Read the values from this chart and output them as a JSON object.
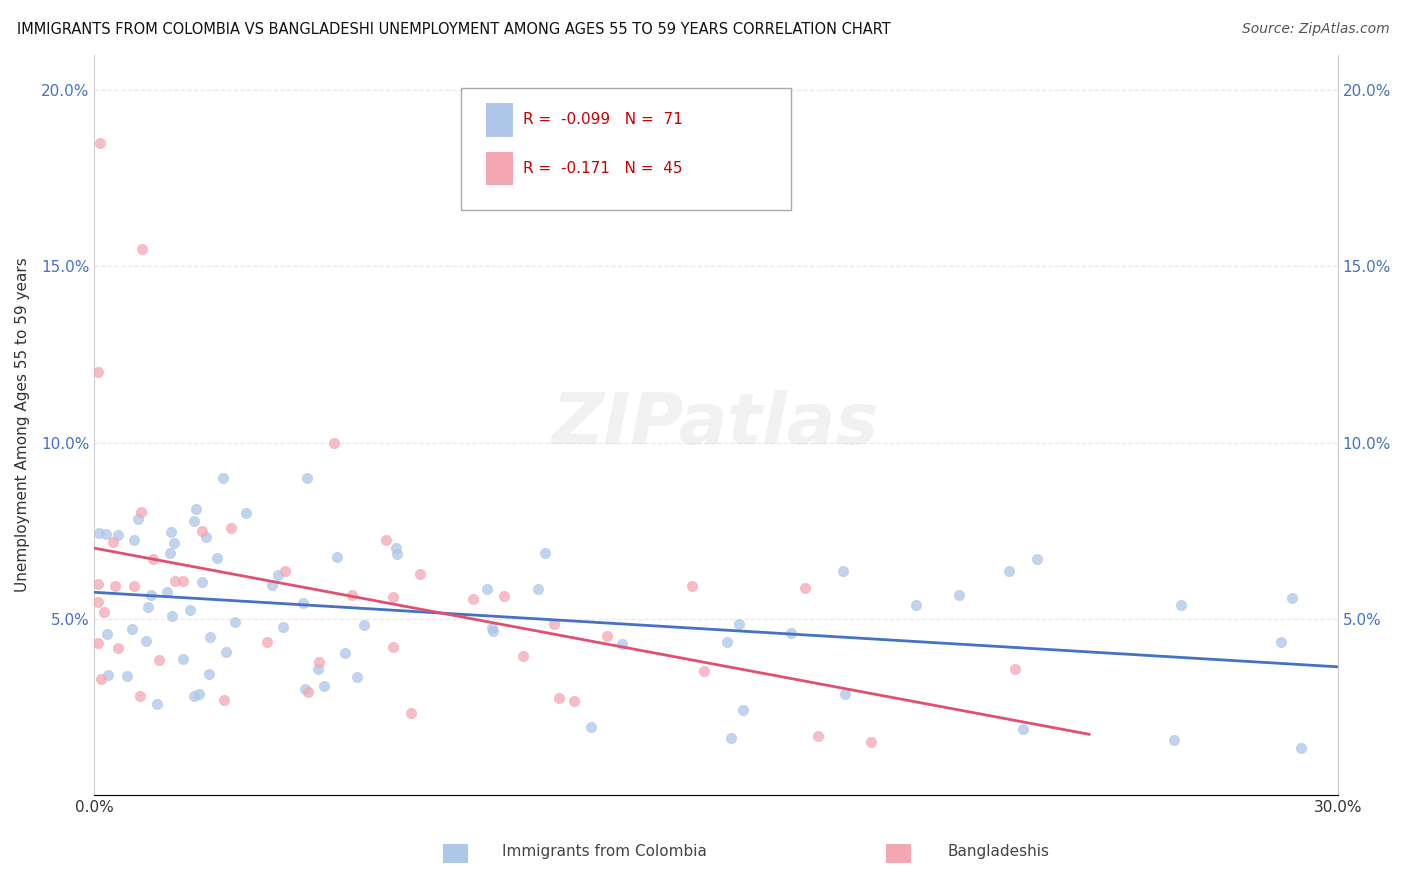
{
  "title": "IMMIGRANTS FROM COLOMBIA VS BANGLADESHI UNEMPLOYMENT AMONG AGES 55 TO 59 YEARS CORRELATION CHART",
  "source": "Source: ZipAtlas.com",
  "ylabel": "Unemployment Among Ages 55 to 59 years",
  "xlim": [
    0.0,
    0.3
  ],
  "ylim": [
    0.0,
    0.21
  ],
  "yticks": [
    0.05,
    0.1,
    0.15,
    0.2
  ],
  "ytick_labels": [
    "5.0%",
    "10.0%",
    "15.0%",
    "20.0%"
  ],
  "xticks": [
    0.0,
    0.3
  ],
  "xtick_labels": [
    "0.0%",
    "30.0%"
  ],
  "colombia_color": "#aec6e8",
  "bangladesh_color": "#f4a7b3",
  "colombia_line_color": "#4472c4",
  "bangladesh_line_color": "#e05070",
  "colombia_R": -0.099,
  "colombia_N": 71,
  "bangladesh_R": -0.171,
  "bangladesh_N": 45,
  "background_color": "#ffffff",
  "grid_color": "#e8e8e8",
  "watermark_text": "ZIPatlas",
  "legend_label_colombia": "R =  -0.099   N =  71",
  "legend_label_bangladesh": "R =  -0.171   N =  45",
  "bottom_legend_colombia": "Immigrants from Colombia",
  "bottom_legend_bangladesh": "Bangladeshis"
}
